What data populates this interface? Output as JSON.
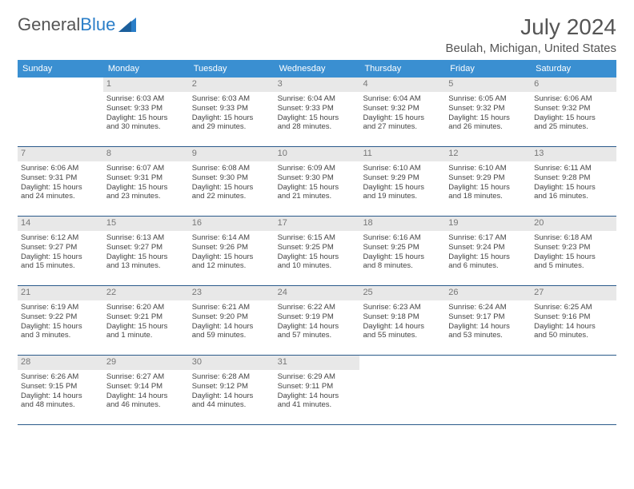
{
  "brand": {
    "name_a": "General",
    "name_b": "Blue"
  },
  "title": "July 2024",
  "location": "Beulah, Michigan, United States",
  "weekdays": [
    "Sunday",
    "Monday",
    "Tuesday",
    "Wednesday",
    "Thursday",
    "Friday",
    "Saturday"
  ],
  "colors": {
    "header_bg": "#3a8fd1",
    "header_text": "#ffffff",
    "daynum_bg": "#e8e8e8",
    "daynum_text": "#777777",
    "rule": "#2a5a8a",
    "body_text": "#444444",
    "title_text": "#555555"
  },
  "typography": {
    "month_title_pt": 28,
    "location_pt": 15,
    "weekday_pt": 11,
    "daynum_pt": 11,
    "cell_pt": 9.5
  },
  "layout": {
    "cols": 7,
    "rows": 5,
    "leading_blanks": 1
  },
  "weeks": [
    [
      {
        "n": "",
        "empty": true,
        "l1": "",
        "l2": "",
        "l3": "",
        "l4": ""
      },
      {
        "n": "1",
        "l1": "Sunrise: 6:03 AM",
        "l2": "Sunset: 9:33 PM",
        "l3": "Daylight: 15 hours",
        "l4": "and 30 minutes."
      },
      {
        "n": "2",
        "l1": "Sunrise: 6:03 AM",
        "l2": "Sunset: 9:33 PM",
        "l3": "Daylight: 15 hours",
        "l4": "and 29 minutes."
      },
      {
        "n": "3",
        "l1": "Sunrise: 6:04 AM",
        "l2": "Sunset: 9:33 PM",
        "l3": "Daylight: 15 hours",
        "l4": "and 28 minutes."
      },
      {
        "n": "4",
        "l1": "Sunrise: 6:04 AM",
        "l2": "Sunset: 9:32 PM",
        "l3": "Daylight: 15 hours",
        "l4": "and 27 minutes."
      },
      {
        "n": "5",
        "l1": "Sunrise: 6:05 AM",
        "l2": "Sunset: 9:32 PM",
        "l3": "Daylight: 15 hours",
        "l4": "and 26 minutes."
      },
      {
        "n": "6",
        "l1": "Sunrise: 6:06 AM",
        "l2": "Sunset: 9:32 PM",
        "l3": "Daylight: 15 hours",
        "l4": "and 25 minutes."
      }
    ],
    [
      {
        "n": "7",
        "l1": "Sunrise: 6:06 AM",
        "l2": "Sunset: 9:31 PM",
        "l3": "Daylight: 15 hours",
        "l4": "and 24 minutes."
      },
      {
        "n": "8",
        "l1": "Sunrise: 6:07 AM",
        "l2": "Sunset: 9:31 PM",
        "l3": "Daylight: 15 hours",
        "l4": "and 23 minutes."
      },
      {
        "n": "9",
        "l1": "Sunrise: 6:08 AM",
        "l2": "Sunset: 9:30 PM",
        "l3": "Daylight: 15 hours",
        "l4": "and 22 minutes."
      },
      {
        "n": "10",
        "l1": "Sunrise: 6:09 AM",
        "l2": "Sunset: 9:30 PM",
        "l3": "Daylight: 15 hours",
        "l4": "and 21 minutes."
      },
      {
        "n": "11",
        "l1": "Sunrise: 6:10 AM",
        "l2": "Sunset: 9:29 PM",
        "l3": "Daylight: 15 hours",
        "l4": "and 19 minutes."
      },
      {
        "n": "12",
        "l1": "Sunrise: 6:10 AM",
        "l2": "Sunset: 9:29 PM",
        "l3": "Daylight: 15 hours",
        "l4": "and 18 minutes."
      },
      {
        "n": "13",
        "l1": "Sunrise: 6:11 AM",
        "l2": "Sunset: 9:28 PM",
        "l3": "Daylight: 15 hours",
        "l4": "and 16 minutes."
      }
    ],
    [
      {
        "n": "14",
        "l1": "Sunrise: 6:12 AM",
        "l2": "Sunset: 9:27 PM",
        "l3": "Daylight: 15 hours",
        "l4": "and 15 minutes."
      },
      {
        "n": "15",
        "l1": "Sunrise: 6:13 AM",
        "l2": "Sunset: 9:27 PM",
        "l3": "Daylight: 15 hours",
        "l4": "and 13 minutes."
      },
      {
        "n": "16",
        "l1": "Sunrise: 6:14 AM",
        "l2": "Sunset: 9:26 PM",
        "l3": "Daylight: 15 hours",
        "l4": "and 12 minutes."
      },
      {
        "n": "17",
        "l1": "Sunrise: 6:15 AM",
        "l2": "Sunset: 9:25 PM",
        "l3": "Daylight: 15 hours",
        "l4": "and 10 minutes."
      },
      {
        "n": "18",
        "l1": "Sunrise: 6:16 AM",
        "l2": "Sunset: 9:25 PM",
        "l3": "Daylight: 15 hours",
        "l4": "and 8 minutes."
      },
      {
        "n": "19",
        "l1": "Sunrise: 6:17 AM",
        "l2": "Sunset: 9:24 PM",
        "l3": "Daylight: 15 hours",
        "l4": "and 6 minutes."
      },
      {
        "n": "20",
        "l1": "Sunrise: 6:18 AM",
        "l2": "Sunset: 9:23 PM",
        "l3": "Daylight: 15 hours",
        "l4": "and 5 minutes."
      }
    ],
    [
      {
        "n": "21",
        "l1": "Sunrise: 6:19 AM",
        "l2": "Sunset: 9:22 PM",
        "l3": "Daylight: 15 hours",
        "l4": "and 3 minutes."
      },
      {
        "n": "22",
        "l1": "Sunrise: 6:20 AM",
        "l2": "Sunset: 9:21 PM",
        "l3": "Daylight: 15 hours",
        "l4": "and 1 minute."
      },
      {
        "n": "23",
        "l1": "Sunrise: 6:21 AM",
        "l2": "Sunset: 9:20 PM",
        "l3": "Daylight: 14 hours",
        "l4": "and 59 minutes."
      },
      {
        "n": "24",
        "l1": "Sunrise: 6:22 AM",
        "l2": "Sunset: 9:19 PM",
        "l3": "Daylight: 14 hours",
        "l4": "and 57 minutes."
      },
      {
        "n": "25",
        "l1": "Sunrise: 6:23 AM",
        "l2": "Sunset: 9:18 PM",
        "l3": "Daylight: 14 hours",
        "l4": "and 55 minutes."
      },
      {
        "n": "26",
        "l1": "Sunrise: 6:24 AM",
        "l2": "Sunset: 9:17 PM",
        "l3": "Daylight: 14 hours",
        "l4": "and 53 minutes."
      },
      {
        "n": "27",
        "l1": "Sunrise: 6:25 AM",
        "l2": "Sunset: 9:16 PM",
        "l3": "Daylight: 14 hours",
        "l4": "and 50 minutes."
      }
    ],
    [
      {
        "n": "28",
        "l1": "Sunrise: 6:26 AM",
        "l2": "Sunset: 9:15 PM",
        "l3": "Daylight: 14 hours",
        "l4": "and 48 minutes."
      },
      {
        "n": "29",
        "l1": "Sunrise: 6:27 AM",
        "l2": "Sunset: 9:14 PM",
        "l3": "Daylight: 14 hours",
        "l4": "and 46 minutes."
      },
      {
        "n": "30",
        "l1": "Sunrise: 6:28 AM",
        "l2": "Sunset: 9:12 PM",
        "l3": "Daylight: 14 hours",
        "l4": "and 44 minutes."
      },
      {
        "n": "31",
        "l1": "Sunrise: 6:29 AM",
        "l2": "Sunset: 9:11 PM",
        "l3": "Daylight: 14 hours",
        "l4": "and 41 minutes."
      },
      {
        "n": "",
        "empty": true,
        "l1": "",
        "l2": "",
        "l3": "",
        "l4": ""
      },
      {
        "n": "",
        "empty": true,
        "l1": "",
        "l2": "",
        "l3": "",
        "l4": ""
      },
      {
        "n": "",
        "empty": true,
        "l1": "",
        "l2": "",
        "l3": "",
        "l4": ""
      }
    ]
  ]
}
